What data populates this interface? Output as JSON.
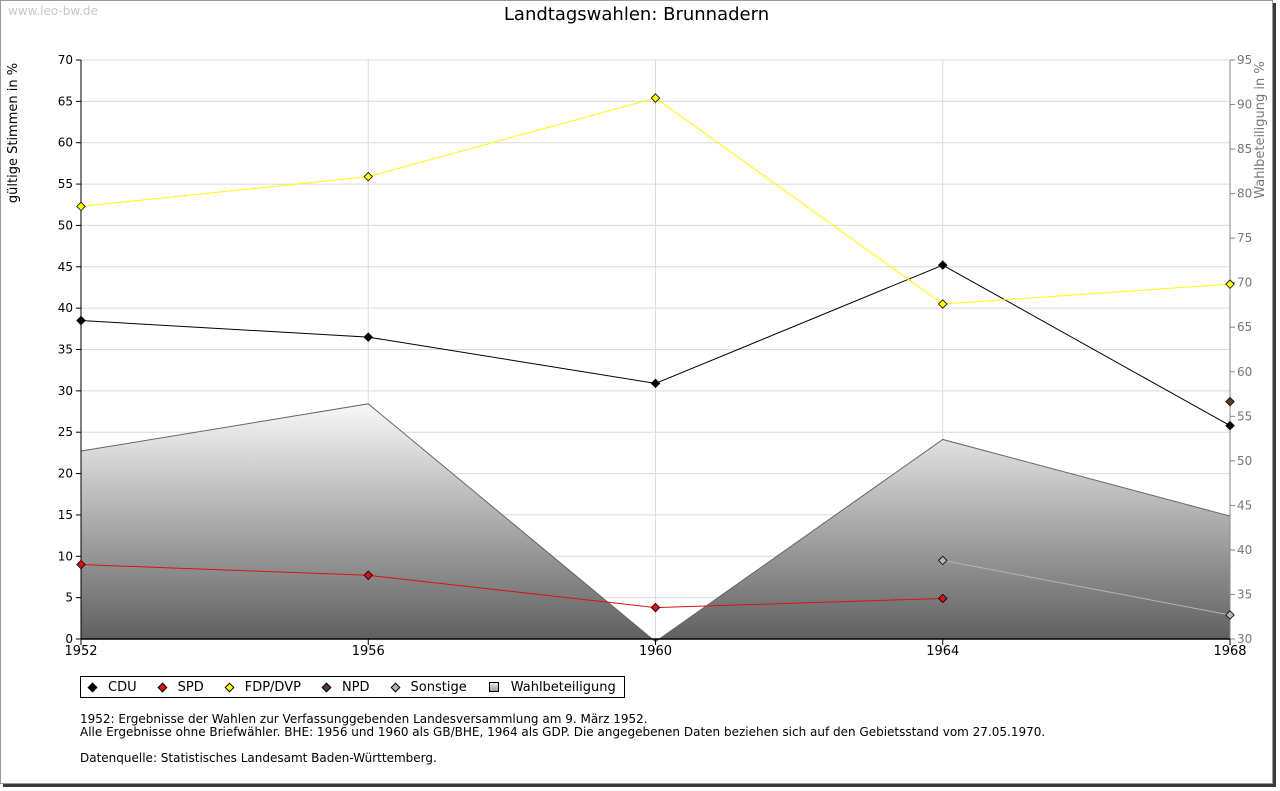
{
  "watermark": "www.leo-bw.de",
  "title": "Landtagswahlen: Brunnadern",
  "chart_data": {
    "type": "line",
    "title": "Landtagswahlen: Brunnadern",
    "x": [
      "1952",
      "1956",
      "1960",
      "1964",
      "1968"
    ],
    "xlabel": "",
    "ylabel": "gültige Stimmen in %",
    "ylim": [
      0,
      70
    ],
    "yticks": [
      0,
      5,
      10,
      15,
      20,
      25,
      30,
      35,
      40,
      45,
      50,
      55,
      60,
      65,
      70
    ],
    "y2label": "Wahlbeteiligung in %",
    "y2lim": [
      30,
      95
    ],
    "y2ticks": [
      30,
      35,
      40,
      45,
      50,
      55,
      60,
      65,
      70,
      75,
      80,
      85,
      90,
      95
    ],
    "grid": true,
    "series": [
      {
        "name": "Wahlbeteiligung",
        "axis": "right",
        "type": "area",
        "color": "#666666",
        "values": [
          51.1,
          56.4,
          29.7,
          52.4,
          43.8
        ]
      },
      {
        "name": "CDU",
        "color": "#000000",
        "values": [
          38.5,
          36.5,
          30.9,
          45.2,
          25.8
        ]
      },
      {
        "name": "SPD",
        "color": "#dd1111",
        "values": [
          9.0,
          7.7,
          3.8,
          4.9,
          null
        ]
      },
      {
        "name": "FDP/DVP",
        "color": "#ffff00",
        "values": [
          52.3,
          55.9,
          65.4,
          40.5,
          42.9
        ]
      },
      {
        "name": "NPD",
        "color": "#5a3d2b",
        "values": [
          null,
          null,
          null,
          null,
          28.7
        ]
      },
      {
        "name": "Sonstige",
        "color": "#b4b4b4",
        "values": [
          null,
          null,
          null,
          9.5,
          2.9
        ]
      }
    ],
    "legend_position": "bottom-left"
  },
  "legend": [
    {
      "label": "CDU",
      "color": "#000000",
      "shape": "diamond"
    },
    {
      "label": "SPD",
      "color": "#dd1111",
      "shape": "diamond"
    },
    {
      "label": "FDP/DVP",
      "color": "#ffff00",
      "shape": "diamond"
    },
    {
      "label": "NPD",
      "color": "#5a3d2b",
      "shape": "diamond"
    },
    {
      "label": "Sonstige",
      "color": "#b4b4b4",
      "shape": "diamond"
    },
    {
      "label": "Wahlbeteiligung",
      "color": "#b0b0b0",
      "shape": "square"
    }
  ],
  "notes": {
    "line1": "1952: Ergebnisse der Wahlen zur Verfassunggebenden Landesversammlung am 9. März 1952.",
    "line2": "Alle Ergebnisse ohne Briefwähler. BHE: 1956 und 1960 als GB/BHE, 1964 als GDP. Die angegebenen Daten beziehen sich auf den Gebietsstand vom 27.05.1970.",
    "source": "Datenquelle: Statistisches Landesamt Baden-Württemberg."
  }
}
